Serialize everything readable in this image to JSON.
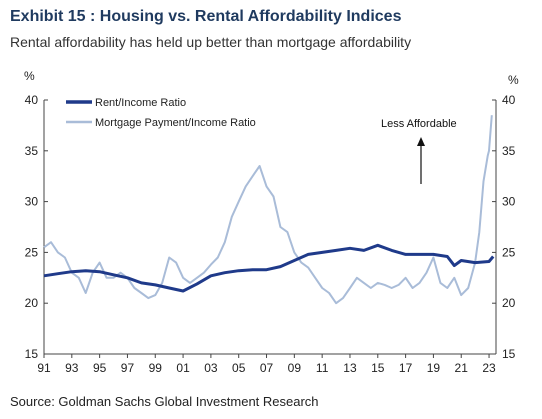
{
  "title": "Exhibit 15 : Housing vs. Rental Affordability Indices",
  "subtitle": "Rental affordability has held up better than mortgage affordability",
  "source": "Source: Goldman Sachs Global Investment Research",
  "colors": {
    "rent": "#1f3a8a",
    "mortgage": "#a9bcd8",
    "axis": "#444444"
  },
  "chart_data": {
    "type": "line",
    "title": "Exhibit 15 : Housing vs. Rental Affordability Indices",
    "ylabel_left": "%",
    "ylabel_right": "%",
    "ylim": [
      15,
      40
    ],
    "yticks": [
      "15",
      "20",
      "25",
      "30",
      "35",
      "40"
    ],
    "xlim": [
      1991,
      2023.5
    ],
    "xticks": [
      "91",
      "93",
      "95",
      "97",
      "99",
      "01",
      "03",
      "05",
      "07",
      "09",
      "11",
      "13",
      "15",
      "17",
      "19",
      "21",
      "23"
    ],
    "grid": false,
    "legend_position": "top-left",
    "annotation": "Less Affordable",
    "series": [
      {
        "name": "Rent/Income Ratio",
        "x": [
          1991,
          1992,
          1993,
          1994,
          1995,
          1996,
          1997,
          1998,
          1999,
          2000,
          2001,
          2002,
          2003,
          2004,
          2005,
          2006,
          2007,
          2008,
          2009,
          2010,
          2011,
          2012,
          2013,
          2014,
          2015,
          2016,
          2017,
          2018,
          2019,
          2020,
          2020.5,
          2021,
          2022,
          2023,
          2023.3
        ],
        "values": [
          22.7,
          22.9,
          23.1,
          23.2,
          23.1,
          22.8,
          22.5,
          22.0,
          21.8,
          21.5,
          21.2,
          21.9,
          22.7,
          23.0,
          23.2,
          23.3,
          23.3,
          23.6,
          24.2,
          24.8,
          25.0,
          25.2,
          25.4,
          25.2,
          25.7,
          25.2,
          24.8,
          24.8,
          24.8,
          24.6,
          23.7,
          24.2,
          24.0,
          24.1,
          24.6
        ]
      },
      {
        "name": "Mortgage Payment/Income Ratio",
        "x": [
          1991,
          1991.5,
          1992,
          1992.5,
          1993,
          1993.5,
          1994,
          1994.5,
          1995,
          1995.5,
          1996,
          1996.5,
          1997,
          1997.5,
          1998,
          1998.5,
          1999,
          1999.5,
          2000,
          2000.5,
          2001,
          2001.5,
          2002,
          2002.5,
          2003,
          2003.5,
          2004,
          2004.5,
          2005,
          2005.5,
          2006,
          2006.5,
          2007,
          2007.5,
          2008,
          2008.5,
          2009,
          2009.5,
          2010,
          2010.5,
          2011,
          2011.5,
          2012,
          2012.5,
          2013,
          2013.5,
          2014,
          2014.5,
          2015,
          2015.5,
          2016,
          2016.5,
          2017,
          2017.5,
          2018,
          2018.5,
          2019,
          2019.5,
          2020,
          2020.5,
          2021,
          2021.5,
          2022,
          2022.3,
          2022.6,
          2022.9,
          2023,
          2023.2
        ],
        "values": [
          25.5,
          26.0,
          25.0,
          24.5,
          23.0,
          22.5,
          21.0,
          23.0,
          24.0,
          22.5,
          22.5,
          23.0,
          22.5,
          21.5,
          21.0,
          20.5,
          20.8,
          22.0,
          24.5,
          24.0,
          22.5,
          22.0,
          22.5,
          23.0,
          23.8,
          24.5,
          26.0,
          28.5,
          30.0,
          31.5,
          32.5,
          33.5,
          31.5,
          30.5,
          27.5,
          27.0,
          25.0,
          24.0,
          23.5,
          22.5,
          21.5,
          21.0,
          20.0,
          20.5,
          21.5,
          22.5,
          22.0,
          21.5,
          22.0,
          21.8,
          21.5,
          21.8,
          22.5,
          21.5,
          22.0,
          23.0,
          24.5,
          22.0,
          21.5,
          22.5,
          20.8,
          21.5,
          24.0,
          27.0,
          32.0,
          34.5,
          35.0,
          38.5
        ]
      }
    ]
  }
}
